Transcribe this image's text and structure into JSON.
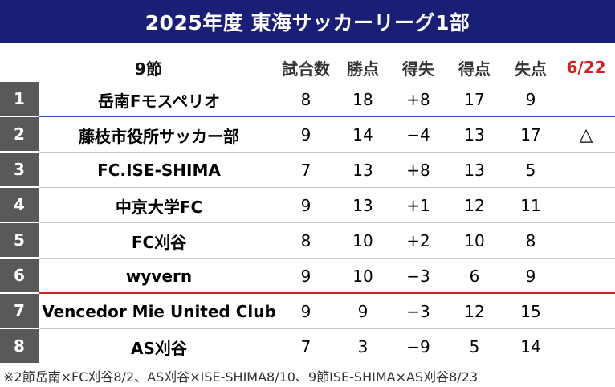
{
  "title": "2025年度 東海サッカーリーグ1部",
  "header": {
    "round": "9節",
    "cols": [
      "試合数",
      "勝点",
      "得失",
      "得点",
      "失点"
    ],
    "date": "6/22"
  },
  "rows": [
    {
      "rank": "1",
      "team": "岳南Fモスペリオ",
      "played": "8",
      "points": "18",
      "diff": "+8",
      "gf": "17",
      "ga": "9",
      "mark": ""
    },
    {
      "rank": "2",
      "team": "藤枝市役所サッカー部",
      "played": "9",
      "points": "14",
      "diff": "−4",
      "gf": "13",
      "ga": "17",
      "mark": "△"
    },
    {
      "rank": "3",
      "team": "FC.ISE-SHIMA",
      "played": "7",
      "points": "13",
      "diff": "+8",
      "gf": "13",
      "ga": "5",
      "mark": ""
    },
    {
      "rank": "4",
      "team": "中京大学FC",
      "played": "9",
      "points": "13",
      "diff": "+1",
      "gf": "12",
      "ga": "11",
      "mark": ""
    },
    {
      "rank": "5",
      "team": "FC刈谷",
      "played": "8",
      "points": "10",
      "diff": "+2",
      "gf": "10",
      "ga": "8",
      "mark": ""
    },
    {
      "rank": "6",
      "team": "wyvern",
      "played": "9",
      "points": "10",
      "diff": "−3",
      "gf": "6",
      "ga": "9",
      "mark": ""
    },
    {
      "rank": "7",
      "team": "Vencedor Mie United Club",
      "played": "9",
      "points": "9",
      "diff": "−3",
      "gf": "12",
      "ga": "15",
      "mark": ""
    },
    {
      "rank": "8",
      "team": "AS刈谷",
      "played": "7",
      "points": "3",
      "diff": "−9",
      "gf": "5",
      "ga": "14",
      "mark": ""
    }
  ],
  "footnote": "※2節岳南×FC刈谷8/2、AS刈谷×ISE-SHIMA8/10、9節ISE-SHIMA×AS刈谷8/23"
}
